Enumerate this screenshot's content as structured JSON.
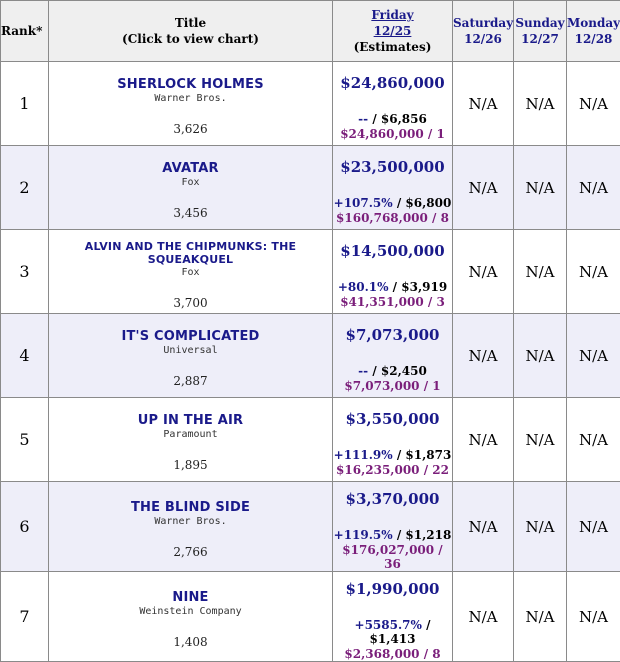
{
  "header": {
    "rank": "Rank*",
    "title_line1": "Title",
    "title_line2": "(Click to view chart)",
    "friday_line1": "Friday",
    "friday_line2": "12/25",
    "friday_line3": "(Estimates)",
    "saturday_line1": "Saturday",
    "saturday_line2": "12/26",
    "sunday_line1": "Sunday",
    "sunday_line2": "12/27",
    "monday_line1": "Monday",
    "monday_line2": "12/28"
  },
  "rows": [
    {
      "rank": "1",
      "title": "SHERLOCK HOLMES",
      "studio": "Warner Bros.",
      "theaters": "3,626",
      "daily": "$24,860,000",
      "change": "--",
      "average": " / $6,856",
      "cume": "$24,860,000 / 1",
      "sat": "N/A",
      "sun": "N/A",
      "mon": "N/A"
    },
    {
      "rank": "2",
      "title": "AVATAR",
      "studio": "Fox",
      "theaters": "3,456",
      "daily": "$23,500,000",
      "change": "+107.5%",
      "average": " / $6,800",
      "cume": "$160,768,000 / 8",
      "sat": "N/A",
      "sun": "N/A",
      "mon": "N/A"
    },
    {
      "rank": "3",
      "title": "ALVIN AND THE CHIPMUNKS: THE SQUEAKQUEL",
      "studio": "Fox",
      "theaters": "3,700",
      "daily": "$14,500,000",
      "change": "+80.1%",
      "average": " / $3,919",
      "cume": "$41,351,000 / 3",
      "sat": "N/A",
      "sun": "N/A",
      "mon": "N/A"
    },
    {
      "rank": "4",
      "title": "IT'S COMPLICATED",
      "studio": "Universal",
      "theaters": "2,887",
      "daily": "$7,073,000",
      "change": "--",
      "average": " / $2,450",
      "cume": "$7,073,000 / 1",
      "sat": "N/A",
      "sun": "N/A",
      "mon": "N/A"
    },
    {
      "rank": "5",
      "title": "UP IN THE AIR",
      "studio": "Paramount",
      "theaters": "1,895",
      "daily": "$3,550,000",
      "change": "+111.9%",
      "average": " / $1,873",
      "cume": "$16,235,000 / 22",
      "sat": "N/A",
      "sun": "N/A",
      "mon": "N/A"
    },
    {
      "rank": "6",
      "title": "THE BLIND SIDE",
      "studio": "Warner Bros.",
      "theaters": "2,766",
      "daily": "$3,370,000",
      "change": "+119.5%",
      "average": " / $1,218",
      "cume": "$176,027,000 / 36",
      "sat": "N/A",
      "sun": "N/A",
      "mon": "N/A"
    },
    {
      "rank": "7",
      "title": "NINE",
      "studio": "Weinstein Company",
      "theaters": "1,408",
      "daily": "$1,990,000",
      "change": "+5585.7%",
      "average": " / $1,413",
      "cume": "$2,368,000 / 8",
      "sat": "N/A",
      "sun": "N/A",
      "mon": "N/A"
    }
  ]
}
